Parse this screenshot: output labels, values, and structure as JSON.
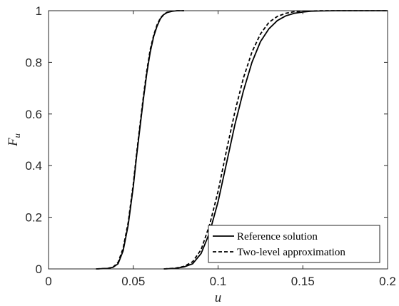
{
  "chart_data": {
    "type": "line",
    "title": "",
    "xlabel": "u",
    "ylabel_main": "F",
    "ylabel_sub": "u",
    "xlim": [
      0,
      0.2
    ],
    "ylim": [
      0,
      1
    ],
    "xticks": [
      0,
      0.05,
      0.1,
      0.15,
      0.2
    ],
    "xtick_labels": [
      "0",
      "0.05",
      "0.1",
      "0.15",
      "0.2"
    ],
    "yticks": [
      0,
      0.2,
      0.4,
      0.6,
      0.8,
      1
    ],
    "ytick_labels": [
      "0",
      "0.2",
      "0.4",
      "0.6",
      "0.8",
      "1"
    ],
    "grid": false,
    "legend_position": "bottom-right",
    "series": [
      {
        "name": "Reference solution",
        "style": "solid",
        "color": "#000000",
        "x": [
          0.028,
          0.035,
          0.038,
          0.041,
          0.044,
          0.047,
          0.05,
          0.052,
          0.054,
          0.056,
          0.058,
          0.06,
          0.062,
          0.064,
          0.066,
          0.068,
          0.07,
          0.073,
          0.076,
          0.08
        ],
        "y": [
          0.0,
          0.002,
          0.006,
          0.02,
          0.07,
          0.17,
          0.32,
          0.44,
          0.55,
          0.66,
          0.76,
          0.84,
          0.9,
          0.94,
          0.97,
          0.985,
          0.993,
          0.998,
          1.0,
          1.0
        ]
      },
      {
        "name": "Two-level approximation",
        "style": "dashed",
        "color": "#000000",
        "x": [
          0.028,
          0.035,
          0.038,
          0.041,
          0.044,
          0.047,
          0.05,
          0.052,
          0.054,
          0.056,
          0.058,
          0.06,
          0.062,
          0.064,
          0.066,
          0.068,
          0.07,
          0.073,
          0.076,
          0.08
        ],
        "y": [
          0.0,
          0.002,
          0.007,
          0.025,
          0.08,
          0.18,
          0.33,
          0.45,
          0.56,
          0.67,
          0.77,
          0.85,
          0.905,
          0.945,
          0.972,
          0.986,
          0.994,
          0.998,
          1.0,
          1.0
        ]
      },
      {
        "name": "Reference solution",
        "style": "solid",
        "color": "#000000",
        "x": [
          0.068,
          0.075,
          0.08,
          0.085,
          0.09,
          0.095,
          0.1,
          0.105,
          0.11,
          0.115,
          0.12,
          0.125,
          0.13,
          0.135,
          0.14,
          0.145,
          0.15,
          0.155,
          0.16,
          0.17,
          0.18,
          0.2
        ],
        "y": [
          0.0,
          0.002,
          0.008,
          0.02,
          0.06,
          0.14,
          0.26,
          0.41,
          0.56,
          0.69,
          0.8,
          0.88,
          0.93,
          0.962,
          0.98,
          0.99,
          0.995,
          0.998,
          0.999,
          1.0,
          1.0,
          1.0
        ]
      },
      {
        "name": "Two-level approximation",
        "style": "dashed",
        "color": "#000000",
        "x": [
          0.068,
          0.075,
          0.08,
          0.085,
          0.09,
          0.095,
          0.1,
          0.105,
          0.11,
          0.115,
          0.12,
          0.125,
          0.13,
          0.135,
          0.14,
          0.145,
          0.15,
          0.155,
          0.16,
          0.17,
          0.18,
          0.2
        ],
        "y": [
          0.0,
          0.003,
          0.01,
          0.028,
          0.075,
          0.17,
          0.3,
          0.46,
          0.61,
          0.74,
          0.84,
          0.91,
          0.955,
          0.978,
          0.99,
          0.996,
          0.998,
          0.999,
          1.0,
          1.0,
          1.0,
          1.0
        ]
      }
    ],
    "legend": [
      {
        "label": "Reference solution",
        "style": "solid"
      },
      {
        "label": "Two-level approximation",
        "style": "dashed"
      }
    ]
  }
}
